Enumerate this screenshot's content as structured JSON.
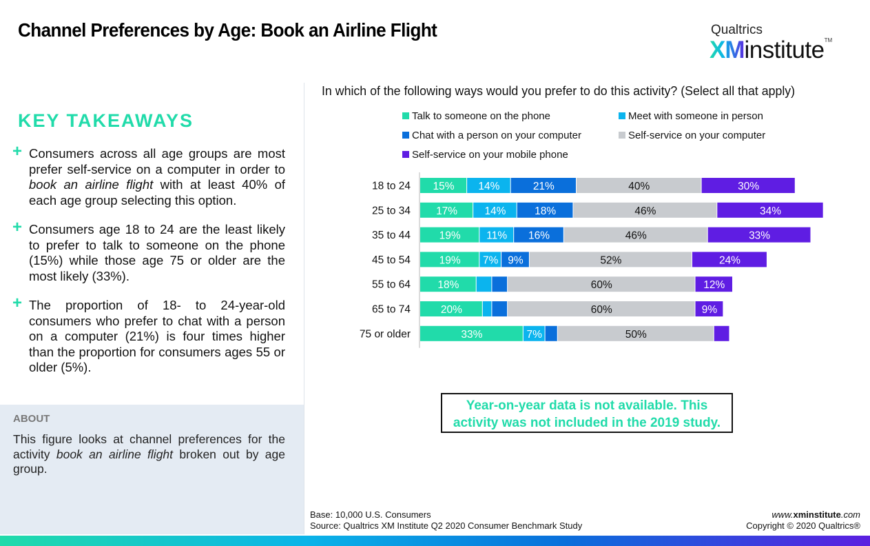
{
  "header": {
    "title": "Channel Preferences by Age: Book an Airline Flight",
    "logo": {
      "top": "Qualtrics",
      "xm": "XM",
      "institute": "institute",
      "tm": "TM"
    }
  },
  "takeaways": {
    "heading": "KEY TAKEAWAYS",
    "items": [
      {
        "pre": "Consumers across all age groups are most prefer self-service on a computer in order to ",
        "em": "book an airline flight",
        "post": " with at least 40% of each age group selecting this option."
      },
      {
        "pre": "Consumers age 18 to 24 are the least likely to prefer to talk to someone on the phone (15%) while those age 75 or older are the most likely (33%).",
        "em": "",
        "post": ""
      },
      {
        "pre": "The proportion of 18- to 24-year-old consumers who prefer to chat with a person on a computer (21%) is four times higher than the proportion for consumers ages 55 or older (5%).",
        "em": "",
        "post": ""
      }
    ]
  },
  "about": {
    "heading": "ABOUT",
    "pre": "This figure looks at channel preferences for the activity ",
    "em": "book an airline flight",
    "post": " broken out by age group."
  },
  "question": "In which of the following ways would you prefer to do this activity? (Select all that apply)",
  "note": {
    "line1": "Year-on-year data is not available. This",
    "line2": "activity was not included in the 2019 study."
  },
  "footer": {
    "base": "Base: 10,000 U.S. Consumers",
    "source": "Source: Qualtrics XM Institute Q2 2020 Consumer Benchmark Study",
    "url_pre": "www.",
    "url_bold": "xminstitute",
    "url_post": ".com",
    "copyright": "Copyright © 2020 Qualtrics®"
  },
  "chart_data": {
    "type": "bar",
    "orientation": "horizontal-stacked",
    "title": "In which of the following ways would you prefer to do this activity? (Select all that apply)",
    "xlabel": "",
    "ylabel": "",
    "legend_position": "top",
    "categories": [
      "18 to 24",
      "25 to 34",
      "35 to 44",
      "45 to 54",
      "55 to 64",
      "65 to 74",
      "75 or older"
    ],
    "series": [
      {
        "name": "Talk to someone on the phone",
        "color": "#21dbaa",
        "label_color": "#ffffff",
        "values": [
          15,
          17,
          19,
          19,
          18,
          20,
          33
        ],
        "show_label": [
          true,
          true,
          true,
          true,
          true,
          true,
          true
        ]
      },
      {
        "name": "Meet with someone in person",
        "color": "#0bb4ee",
        "label_color": "#ffffff",
        "values": [
          14,
          14,
          11,
          7,
          5,
          3,
          7
        ],
        "show_label": [
          true,
          true,
          true,
          true,
          false,
          false,
          true
        ]
      },
      {
        "name": "Chat with a person on your computer",
        "color": "#0a6fdb",
        "label_color": "#ffffff",
        "values": [
          21,
          18,
          16,
          9,
          5,
          5,
          4
        ],
        "show_label": [
          true,
          true,
          true,
          true,
          false,
          false,
          false
        ]
      },
      {
        "name": "Self-service on your computer",
        "color": "#c8cbcf",
        "label_color": "#111111",
        "values": [
          40,
          46,
          46,
          52,
          60,
          60,
          50
        ],
        "show_label": [
          true,
          true,
          true,
          true,
          true,
          true,
          true
        ]
      },
      {
        "name": "Self-service on your mobile phone",
        "color": "#5f1de3",
        "label_color": "#ffffff",
        "values": [
          30,
          34,
          33,
          24,
          12,
          9,
          5
        ],
        "show_label": [
          true,
          true,
          true,
          true,
          true,
          true,
          false
        ]
      }
    ],
    "grid": false
  }
}
